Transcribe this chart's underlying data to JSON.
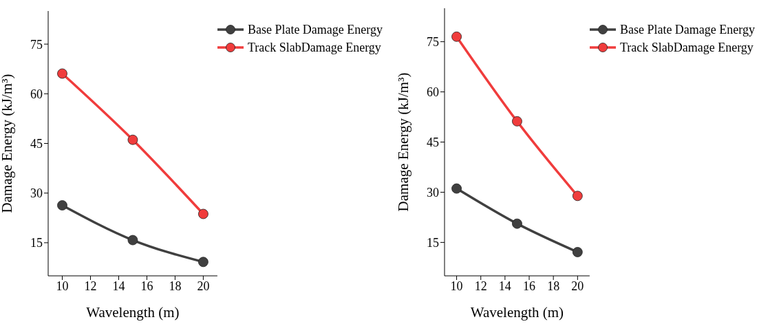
{
  "chart_data": [
    {
      "type": "line",
      "xlabel": "Wavelength (m)",
      "ylabel": "Damage Energy (kJ/m³)",
      "x": [
        10,
        15,
        20
      ],
      "xlim": [
        9,
        21
      ],
      "xticks": [
        10,
        12,
        14,
        16,
        18,
        20
      ],
      "ylim": [
        5,
        85
      ],
      "yticks": [
        15,
        30,
        45,
        60,
        75
      ],
      "grid": false,
      "legend": "top right",
      "marker": "circle",
      "line_style": "solid",
      "series": [
        {
          "name": "Base Plate Damage Energy",
          "color": "#404040",
          "values": [
            26.3,
            15.8,
            9.2
          ]
        },
        {
          "name": "Track SlabDamage Energy",
          "color": "#f03c3c",
          "values": [
            66.1,
            46.1,
            23.7
          ]
        }
      ]
    },
    {
      "type": "line",
      "xlabel": "Wavelength (m)",
      "ylabel": "Damage Energy (kJ/m³)",
      "x": [
        10,
        15,
        20
      ],
      "xlim": [
        9,
        21
      ],
      "xticks": [
        10,
        12,
        14,
        16,
        18,
        20
      ],
      "ylim": [
        5,
        85
      ],
      "yticks": [
        15,
        30,
        45,
        60,
        75
      ],
      "grid": false,
      "legend": "top right",
      "marker": "circle",
      "line_style": "solid",
      "series": [
        {
          "name": "Base Plate Damage Energy",
          "color": "#404040",
          "values": [
            31.1,
            20.6,
            12.1
          ]
        },
        {
          "name": "Track SlabDamage Energy",
          "color": "#f03c3c",
          "values": [
            76.5,
            51.2,
            28.9
          ]
        }
      ]
    }
  ]
}
